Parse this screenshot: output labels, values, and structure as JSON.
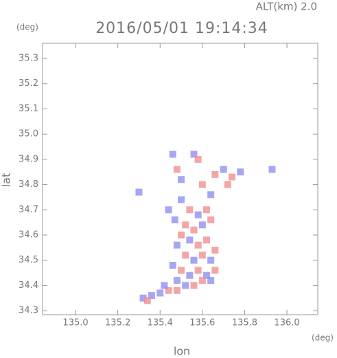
{
  "chart_data": {
    "type": "scatter",
    "title": "2016/05/01 19:14:34",
    "subtitle": "ALT(km) 2.0",
    "xlabel": "lon",
    "ylabel": "lat",
    "xunit": "(deg)",
    "yunit": "(deg)",
    "xlim": [
      134.844,
      136.146
    ],
    "ylim": [
      34.284,
      35.36
    ],
    "xticks": [
      {
        "value": 135,
        "label": "135.0"
      },
      135.2,
      135.4,
      135.6,
      135.8,
      {
        "value": 136,
        "label": "136.0"
      }
    ],
    "yticks": [
      34.3,
      34.4,
      34.5,
      34.6,
      34.7,
      34.8,
      34.9,
      {
        "value": 35,
        "label": "35.0"
      },
      35.1,
      35.2,
      35.3
    ],
    "x": [
      135.5,
      135.54,
      135.58,
      135.62,
      135.47,
      135.52,
      135.56,
      135.6,
      135.64,
      135.5,
      135.54,
      135.58,
      135.62,
      135.48,
      135.52,
      135.56,
      135.6,
      135.64,
      135.66,
      135.46,
      135.5,
      135.54,
      135.58,
      135.62,
      135.66,
      135.48,
      135.52,
      135.56,
      135.6,
      135.64,
      135.44,
      135.4,
      135.36,
      135.32,
      135.34,
      135.42,
      135.48,
      135.46,
      135.48,
      135.5,
      135.56,
      135.58,
      135.6,
      135.66,
      135.7,
      135.74,
      135.78,
      135.72,
      135.93,
      135.64,
      135.44,
      135.3
    ],
    "y": [
      34.74,
      34.7,
      34.68,
      34.7,
      34.66,
      34.64,
      34.62,
      34.64,
      34.66,
      34.6,
      34.58,
      34.56,
      34.58,
      34.56,
      34.52,
      34.5,
      34.52,
      34.5,
      34.54,
      34.48,
      34.46,
      34.44,
      34.46,
      34.44,
      34.46,
      34.42,
      34.4,
      34.4,
      34.42,
      34.42,
      34.38,
      34.37,
      34.36,
      34.35,
      34.34,
      34.4,
      34.38,
      34.92,
      34.86,
      34.82,
      34.92,
      34.9,
      34.8,
      34.84,
      34.86,
      34.83,
      34.85,
      34.8,
      34.86,
      34.76,
      34.7,
      34.77
    ],
    "colors": [
      "#9090f0",
      "#f09090",
      "#9090f0",
      "#f09090",
      "#9090f0",
      "#f09090",
      "#f09090",
      "#9090f0",
      "#f09090",
      "#f09090",
      "#9090f0",
      "#f09090",
      "#f09090",
      "#9090f0",
      "#f09090",
      "#9090f0",
      "#f09090",
      "#9090f0",
      "#f09090",
      "#9090f0",
      "#f09090",
      "#9090f0",
      "#f09090",
      "#9090f0",
      "#f09090",
      "#9090f0",
      "#9090f0",
      "#f09090",
      "#f09090",
      "#9090f0",
      "#f09090",
      "#9090f0",
      "#9090f0",
      "#9090f0",
      "#f09090",
      "#9090f0",
      "#f09090",
      "#9090f0",
      "#f09090",
      "#9090f0",
      "#9090f0",
      "#f09090",
      "#f09090",
      "#f09090",
      "#9090f0",
      "#f09090",
      "#9090f0",
      "#f09090",
      "#9090f0",
      "#9090f0",
      "#9090f0",
      "#9090f0"
    ]
  }
}
